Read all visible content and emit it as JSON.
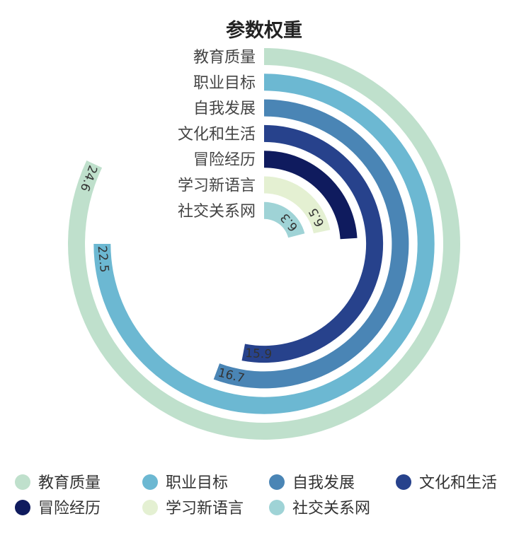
{
  "chart_data": {
    "type": "radial-bar",
    "title": "参数权重",
    "categories": [
      "教育质量",
      "职业目标",
      "自我发展",
      "文化和生活",
      "冒险经历",
      "学习新语言",
      "社交关系网"
    ],
    "values": [
      24.6,
      22.5,
      16.7,
      15.9,
      7.2,
      6.5,
      6.3
    ],
    "value_labels": [
      "24.6",
      "22.5",
      "16.7",
      "15.9",
      "",
      "6.5",
      "6.3"
    ],
    "colors": [
      "#bfe0cc",
      "#6cb8d2",
      "#4a85b5",
      "#27428c",
      "#0f1b5e",
      "#e4f0d2",
      "#9fd3d6"
    ],
    "angle_max": 30,
    "legend": {
      "position": "bottom",
      "items": [
        "教育质量",
        "职业目标",
        "自我发展",
        "文化和生活",
        "冒险经历",
        "学习新语言",
        "社交关系网"
      ]
    }
  }
}
